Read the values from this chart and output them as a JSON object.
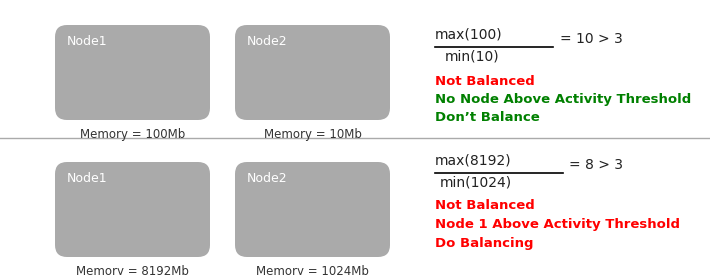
{
  "bg_color": "#ffffff",
  "panel1": {
    "node1_label": "Node1",
    "node2_label": "Node2",
    "mem1": "Memory = 100Mb",
    "mem2": "Memory = 10Mb",
    "formula_num": "max(100)",
    "formula_den": "min(10)",
    "formula_result": "= 10 > 3",
    "line1_color": "#ff0000",
    "line1_text": "Not Balanced",
    "line2_color": "#008000",
    "line2_text": "No Node Above Activity Threshold",
    "line3_color": "#008000",
    "line3_text": "Don’t Balance"
  },
  "panel2": {
    "node1_label": "Node1",
    "node2_label": "Node2",
    "mem1": "Memory = 8192Mb",
    "mem2": "Memory = 1024Mb",
    "formula_num": "max(8192)",
    "formula_den": "min(1024)",
    "formula_result": "= 8 > 3",
    "line1_color": "#ff0000",
    "line1_text": "Not Balanced",
    "line2_color": "#ff0000",
    "line2_text": "Node 1 Above Activity Threshold",
    "line3_color": "#ff0000",
    "line3_text": "Do Balancing"
  },
  "node_color": "#aaaaaa",
  "node_label_color": "#ffffff",
  "mem_label_color": "#333333",
  "formula_color": "#222222",
  "divider_color": "#aaaaaa"
}
